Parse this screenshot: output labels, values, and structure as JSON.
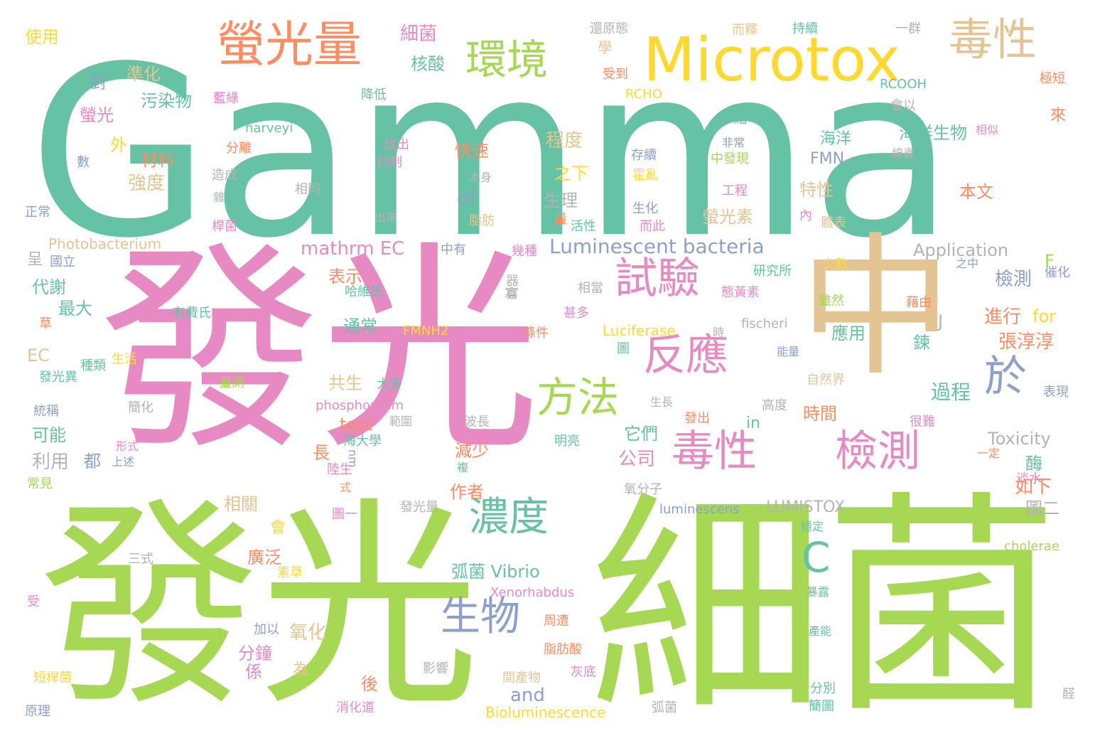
{
  "palette": {
    "teal": "#66c2a5",
    "orange": "#fc8d62",
    "blue": "#8da0cb",
    "pink": "#e78ac3",
    "green": "#a6d854",
    "yellow": "#ffd92f",
    "tan": "#e5c494",
    "gray": "#b3b3b3"
  },
  "words": [
    {
      "text": "Gamma",
      "color": "teal"
    },
    {
      "text": "發光",
      "color": "pink"
    },
    {
      "text": "發光",
      "color": "green"
    },
    {
      "text": "細菌",
      "color": "green"
    },
    {
      "text": "中",
      "color": "tan"
    },
    {
      "text": "Microtox",
      "color": "yellow"
    },
    {
      "text": "螢光量",
      "color": "orange"
    },
    {
      "text": "環境",
      "color": "green"
    },
    {
      "text": "毒性",
      "color": "tan"
    },
    {
      "text": "試驗",
      "color": "pink"
    },
    {
      "text": "反應",
      "color": "pink"
    },
    {
      "text": "毒性",
      "color": "pink"
    },
    {
      "text": "檢測",
      "color": "pink"
    },
    {
      "text": "方法",
      "color": "green"
    },
    {
      "text": "於",
      "color": "blue"
    },
    {
      "text": "濃度",
      "color": "teal"
    },
    {
      "text": "生物",
      "color": "blue"
    },
    {
      "text": "C",
      "color": "teal"
    },
    {
      "text": "Luminescent bacteria",
      "color": "blue"
    },
    {
      "text": "mathrm EC",
      "color": "pink"
    },
    {
      "text": "Application",
      "color": "gray"
    },
    {
      "text": "細菌",
      "color": "pink"
    },
    {
      "text": "核酸",
      "color": "teal"
    },
    {
      "text": "學",
      "color": "tan"
    },
    {
      "text": "使用",
      "color": "yellow"
    },
    {
      "text": "還原態",
      "color": "gray"
    },
    {
      "text": "而釋",
      "color": "tan"
    },
    {
      "text": "持續",
      "color": "teal"
    },
    {
      "text": "一群",
      "color": "gray"
    },
    {
      "text": "準化",
      "color": "tan"
    },
    {
      "text": "對",
      "color": "blue"
    },
    {
      "text": "污染物",
      "color": "teal"
    },
    {
      "text": "藍綠",
      "color": "pink"
    },
    {
      "text": "降低",
      "color": "teal"
    },
    {
      "text": "受到",
      "color": "orange"
    },
    {
      "text": "RCHO",
      "color": "yellow"
    },
    {
      "text": "RCOOH",
      "color": "teal"
    },
    {
      "text": "極短",
      "color": "orange"
    },
    {
      "text": "螢光",
      "color": "pink"
    },
    {
      "text": "harveyi",
      "color": "teal"
    },
    {
      "text": "繪",
      "color": "teal"
    },
    {
      "text": "非常",
      "color": "blue"
    },
    {
      "text": "會以",
      "color": "gray"
    },
    {
      "text": "海洋生物",
      "color": "teal"
    },
    {
      "text": "相似",
      "color": "pink"
    },
    {
      "text": "來",
      "color": "orange"
    },
    {
      "text": "外",
      "color": "yellow"
    },
    {
      "text": "材料",
      "color": "orange"
    },
    {
      "text": "分離",
      "color": "orange"
    },
    {
      "text": "放出",
      "color": "pink"
    },
    {
      "text": "抑制",
      "color": "pink"
    },
    {
      "text": "快速",
      "color": "orange"
    },
    {
      "text": "程度",
      "color": "tan"
    },
    {
      "text": "存續",
      "color": "blue"
    },
    {
      "text": "海洋",
      "color": "teal"
    },
    {
      "text": "中發現",
      "color": "green"
    },
    {
      "text": "FMN",
      "color": "blue"
    },
    {
      "text": "線蟲",
      "color": "gray"
    },
    {
      "text": "數",
      "color": "blue"
    },
    {
      "text": "強度",
      "color": "tan"
    },
    {
      "text": "造成",
      "color": "gray"
    },
    {
      "text": "之下",
      "color": "yellow"
    },
    {
      "text": "本身",
      "color": "gray"
    },
    {
      "text": "霍亂",
      "color": "yellow"
    },
    {
      "text": "本文",
      "color": "orange"
    },
    {
      "text": "雜",
      "color": "gray"
    },
    {
      "text": "相同",
      "color": "gray"
    },
    {
      "text": "of",
      "color": "blue"
    },
    {
      "text": "生理",
      "color": "gray"
    },
    {
      "text": "工程",
      "color": "pink"
    },
    {
      "text": "特性",
      "color": "tan"
    },
    {
      "text": "正常",
      "color": "blue"
    },
    {
      "text": "出來",
      "color": "gray"
    },
    {
      "text": "脂肪",
      "color": "tan"
    },
    {
      "text": "生化",
      "color": "blue"
    },
    {
      "text": "螢光素",
      "color": "tan"
    },
    {
      "text": "桿菌",
      "color": "pink"
    },
    {
      "text": "量",
      "color": "orange"
    },
    {
      "text": "活性",
      "color": "teal"
    },
    {
      "text": "而此",
      "color": "pink"
    },
    {
      "text": "內",
      "color": "pink"
    },
    {
      "text": "體表",
      "color": "tan"
    },
    {
      "text": "Photobacterium",
      "color": "tan"
    },
    {
      "text": "呈",
      "color": "gray"
    },
    {
      "text": "國立",
      "color": "blue"
    },
    {
      "text": "中有",
      "color": "blue"
    },
    {
      "text": "幾種",
      "color": "pink"
    },
    {
      "text": "F",
      "color": "green"
    },
    {
      "text": "之中",
      "color": "blue"
    },
    {
      "text": "研究所",
      "color": "teal"
    },
    {
      "text": "少數",
      "color": "yellow"
    },
    {
      "text": "催化",
      "color": "blue"
    },
    {
      "text": "代謝",
      "color": "teal"
    },
    {
      "text": "表示",
      "color": "orange"
    },
    {
      "text": "哈維氏",
      "color": "teal"
    },
    {
      "text": "器官",
      "color": "gray"
    },
    {
      "text": "寡",
      "color": "gray"
    },
    {
      "text": "相當",
      "color": "gray"
    },
    {
      "text": "態黃素",
      "color": "pink"
    },
    {
      "text": "檢測",
      "color": "blue"
    },
    {
      "text": "最大",
      "color": "teal"
    },
    {
      "text": "有費氏",
      "color": "teal"
    },
    {
      "text": "甚多",
      "color": "pink"
    },
    {
      "text": "雖然",
      "color": "green"
    },
    {
      "text": "藉由",
      "color": "orange"
    },
    {
      "text": "草",
      "color": "orange"
    },
    {
      "text": "通常",
      "color": "teal"
    },
    {
      "text": "J",
      "color": "gray"
    },
    {
      "text": "進行",
      "color": "orange"
    },
    {
      "text": "for",
      "color": "yellow"
    },
    {
      "text": "FMNH2",
      "color": "yellow"
    },
    {
      "text": "條件",
      "color": "orange"
    },
    {
      "text": "Luciferase",
      "color": "yellow"
    },
    {
      "text": "時",
      "color": "gray"
    },
    {
      "text": "fischeri",
      "color": "gray"
    },
    {
      "text": "應用",
      "color": "teal"
    },
    {
      "text": "鍊",
      "color": "teal"
    },
    {
      "text": "張淳淳",
      "color": "orange"
    },
    {
      "text": "EC",
      "color": "tan"
    },
    {
      "text": "生活",
      "color": "yellow"
    },
    {
      "text": "種類",
      "color": "teal"
    },
    {
      "text": "圖",
      "color": "teal"
    },
    {
      "text": "能量",
      "color": "blue"
    },
    {
      "text": "發光異",
      "color": "teal"
    },
    {
      "text": "共生",
      "color": "tan"
    },
    {
      "text": "大多",
      "color": "teal"
    },
    {
      "text": "自然界",
      "color": "tan"
    },
    {
      "text": "量測",
      "color": "green"
    },
    {
      "text": "過程",
      "color": "teal"
    },
    {
      "text": "表現",
      "color": "blue"
    },
    {
      "text": "統稱",
      "color": "blue"
    },
    {
      "text": "簡化",
      "color": "gray"
    },
    {
      "text": "phosphoreum",
      "color": "pink"
    },
    {
      "text": "生長",
      "color": "gray"
    },
    {
      "text": "高度",
      "color": "gray"
    },
    {
      "text": "時間",
      "color": "orange"
    },
    {
      "text": "可能",
      "color": "teal"
    },
    {
      "text": "test",
      "color": "orange"
    },
    {
      "text": "範圍",
      "color": "gray"
    },
    {
      "text": "波長",
      "color": "gray"
    },
    {
      "text": "in",
      "color": "teal"
    },
    {
      "text": "發出",
      "color": "orange"
    },
    {
      "text": "很難",
      "color": "pink"
    },
    {
      "text": "Toxicity",
      "color": "gray"
    },
    {
      "text": "它們",
      "color": "teal"
    },
    {
      "text": "利用",
      "color": "gray"
    },
    {
      "text": "都",
      "color": "blue"
    },
    {
      "text": "形式",
      "color": "pink"
    },
    {
      "text": "上述",
      "color": "blue"
    },
    {
      "text": "長",
      "color": "orange"
    },
    {
      "text": "海大學",
      "color": "teal"
    },
    {
      "text": "nm",
      "color": "blue"
    },
    {
      "text": "減少",
      "color": "orange"
    },
    {
      "text": "明亮",
      "color": "teal"
    },
    {
      "text": "公司",
      "color": "pink"
    },
    {
      "text": "一定",
      "color": "orange"
    },
    {
      "text": "酶",
      "color": "teal"
    },
    {
      "text": "常見",
      "color": "green"
    },
    {
      "text": "陸生",
      "color": "pink"
    },
    {
      "text": "複",
      "color": "teal"
    },
    {
      "text": "式",
      "color": "orange"
    },
    {
      "text": "作者",
      "color": "orange"
    },
    {
      "text": "氧分子",
      "color": "gray"
    },
    {
      "text": "淡水",
      "color": "pink"
    },
    {
      "text": "如下",
      "color": "orange"
    },
    {
      "text": "相關",
      "color": "tan"
    },
    {
      "text": "圖一",
      "color": "pink"
    },
    {
      "text": "發光量",
      "color": "gray"
    },
    {
      "text": "luminescens",
      "color": "blue"
    },
    {
      "text": "LUMISTOX",
      "color": "gray"
    },
    {
      "text": "圖二",
      "color": "gray"
    },
    {
      "text": "會",
      "color": "yellow"
    },
    {
      "text": "穩定",
      "color": "teal"
    },
    {
      "text": "廣泛",
      "color": "orange"
    },
    {
      "text": "三式",
      "color": "gray"
    },
    {
      "text": "素草",
      "color": "yellow"
    },
    {
      "text": "弧菌 Vibrio",
      "color": "teal"
    },
    {
      "text": "暴露",
      "color": "teal"
    },
    {
      "text": "cholerae",
      "color": "green"
    },
    {
      "text": "受",
      "color": "pink"
    },
    {
      "text": "Xenorhabdus",
      "color": "pink"
    },
    {
      "text": "加以",
      "color": "blue"
    },
    {
      "text": "氧化",
      "color": "tan"
    },
    {
      "text": "周遭",
      "color": "orange"
    },
    {
      "text": "產能",
      "color": "teal"
    },
    {
      "text": "分鐘",
      "color": "pink"
    },
    {
      "text": "係",
      "color": "pink"
    },
    {
      "text": "為",
      "color": "tan"
    },
    {
      "text": "脂肪酸",
      "color": "orange"
    },
    {
      "text": "灰底",
      "color": "pink"
    },
    {
      "text": "and",
      "color": "blue"
    },
    {
      "text": "後",
      "color": "orange"
    },
    {
      "text": "短桿菌",
      "color": "yellow"
    },
    {
      "text": "影響",
      "color": "gray"
    },
    {
      "text": "間產物",
      "color": "tan"
    },
    {
      "text": "分別",
      "color": "teal"
    },
    {
      "text": "醛",
      "color": "gray"
    },
    {
      "text": "原理",
      "color": "blue"
    },
    {
      "text": "消化道",
      "color": "pink"
    },
    {
      "text": "Bioluminescence",
      "color": "yellow"
    },
    {
      "text": "弧菌",
      "color": "gray"
    },
    {
      "text": "簡圖",
      "color": "teal"
    }
  ]
}
